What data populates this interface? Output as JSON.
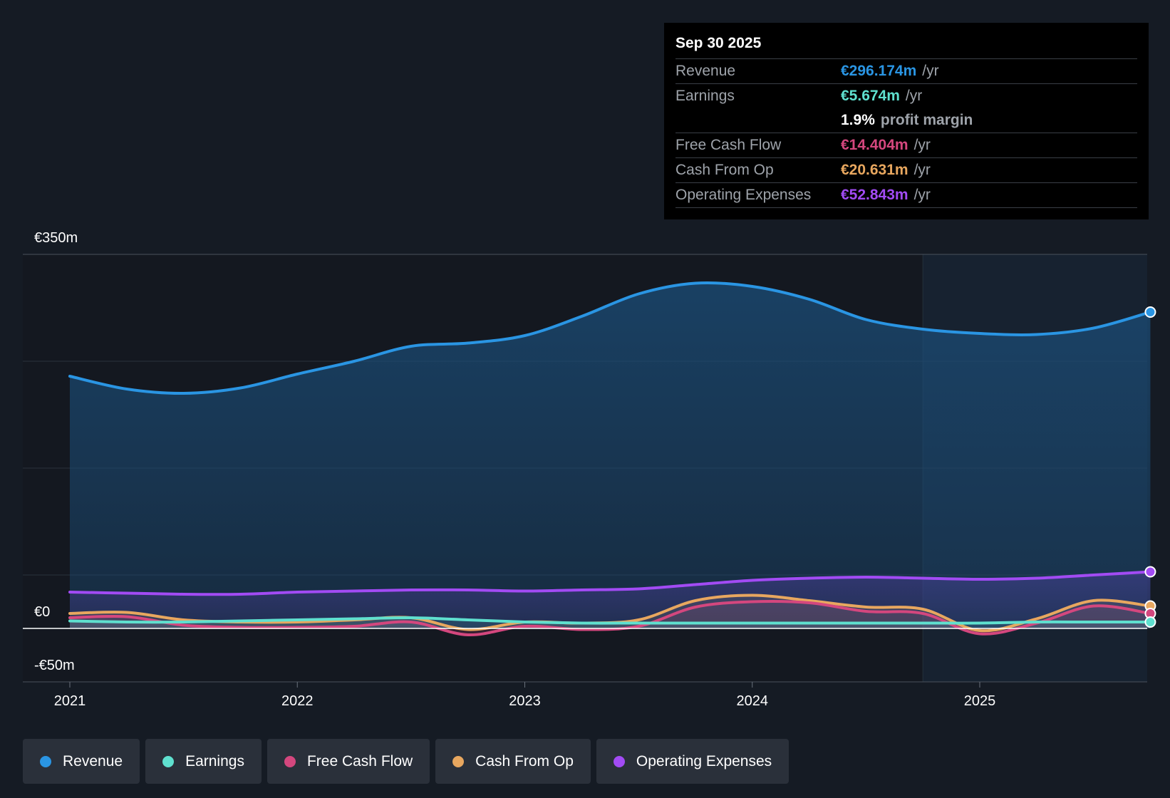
{
  "chart_data": {
    "type": "area",
    "title": "",
    "currency": "€",
    "ylim": [
      -50,
      350
    ],
    "y_tick_labels": [
      "€350m",
      "€0",
      "-€50m"
    ],
    "x_ticks": [
      "2021",
      "2022",
      "2023",
      "2024",
      "2025"
    ],
    "x_tick_values": [
      2021.0,
      2022.0,
      2023.0,
      2024.0,
      2025.0
    ],
    "xlim": [
      2020.8,
      2025.75
    ],
    "forecast_start": 2024.75,
    "series": [
      {
        "name": "Operating Expenses",
        "color": "#a24bf4",
        "x": [
          2021.0,
          2021.25,
          2021.5,
          2021.75,
          2022.0,
          2022.25,
          2022.5,
          2022.75,
          2023.0,
          2023.25,
          2023.5,
          2023.75,
          2024.0,
          2024.25,
          2024.5,
          2024.75,
          2025.0,
          2025.25,
          2025.5,
          2025.75
        ],
        "values": [
          34,
          33,
          32,
          32,
          34,
          35,
          36,
          36,
          35,
          36,
          37,
          41,
          45,
          47,
          48,
          47,
          46,
          47,
          50,
          53
        ]
      },
      {
        "name": "Cash From Op",
        "color": "#e8a75f",
        "x": [
          2021.0,
          2021.25,
          2021.5,
          2021.75,
          2022.0,
          2022.25,
          2022.5,
          2022.75,
          2023.0,
          2023.25,
          2023.5,
          2023.75,
          2024.0,
          2024.25,
          2024.5,
          2024.75,
          2025.0,
          2025.25,
          2025.5,
          2025.75
        ],
        "values": [
          14,
          15,
          8,
          6,
          6,
          8,
          10,
          -1,
          6,
          5,
          8,
          26,
          31,
          26,
          20,
          18,
          -2,
          9,
          26,
          21
        ]
      },
      {
        "name": "Free Cash Flow",
        "color": "#d4477e",
        "x": [
          2021.0,
          2021.25,
          2021.5,
          2021.75,
          2022.0,
          2022.25,
          2022.5,
          2022.75,
          2023.0,
          2023.25,
          2023.5,
          2023.75,
          2024.0,
          2024.25,
          2024.5,
          2024.75,
          2025.0,
          2025.25,
          2025.5,
          2025.75
        ],
        "values": [
          10,
          11,
          3,
          1,
          1,
          2,
          6,
          -6,
          2,
          -1,
          2,
          20,
          25,
          24,
          16,
          14,
          -5,
          5,
          21,
          14
        ]
      },
      {
        "name": "Earnings",
        "color": "#5fe0cf",
        "x": [
          2021.0,
          2021.25,
          2021.5,
          2021.75,
          2022.0,
          2022.25,
          2022.5,
          2022.75,
          2023.0,
          2023.25,
          2023.5,
          2023.75,
          2024.0,
          2024.25,
          2024.5,
          2024.75,
          2025.0,
          2025.25,
          2025.5,
          2025.75
        ],
        "values": [
          7,
          6,
          6,
          7,
          8,
          9,
          10,
          8,
          6,
          5,
          5,
          5,
          5,
          5,
          5,
          5,
          5,
          6,
          6,
          6
        ]
      },
      {
        "name": "Revenue",
        "color": "#2a95e3",
        "x": [
          2021.0,
          2021.25,
          2021.5,
          2021.75,
          2022.0,
          2022.25,
          2022.5,
          2022.75,
          2023.0,
          2023.25,
          2023.5,
          2023.75,
          2024.0,
          2024.25,
          2024.5,
          2024.75,
          2025.0,
          2025.25,
          2025.5,
          2025.75
        ],
        "values": [
          236,
          224,
          220,
          225,
          238,
          250,
          264,
          267,
          274,
          292,
          313,
          323,
          320,
          308,
          289,
          280,
          276,
          275,
          281,
          296
        ]
      }
    ]
  },
  "tooltip": {
    "date": "Sep 30 2025",
    "rows": [
      {
        "label": "Revenue",
        "value": "€296.174m",
        "unit": "/yr",
        "color": "#2a95e3"
      },
      {
        "label": "Earnings",
        "value": "€5.674m",
        "unit": "/yr",
        "color": "#5fe0cf"
      },
      {
        "label": "",
        "value": "1.9%",
        "unit": "profit margin",
        "color": "#ffffff"
      },
      {
        "label": "Free Cash Flow",
        "value": "€14.404m",
        "unit": "/yr",
        "color": "#d4477e"
      },
      {
        "label": "Cash From Op",
        "value": "€20.631m",
        "unit": "/yr",
        "color": "#e8a75f"
      },
      {
        "label": "Operating Expenses",
        "value": "€52.843m",
        "unit": "/yr",
        "color": "#a24bf4"
      }
    ]
  },
  "legend": [
    {
      "label": "Revenue",
      "color": "#2a95e3"
    },
    {
      "label": "Earnings",
      "color": "#5fe0cf"
    },
    {
      "label": "Free Cash Flow",
      "color": "#d4477e"
    },
    {
      "label": "Cash From Op",
      "color": "#e8a75f"
    },
    {
      "label": "Operating Expenses",
      "color": "#a24bf4"
    }
  ]
}
